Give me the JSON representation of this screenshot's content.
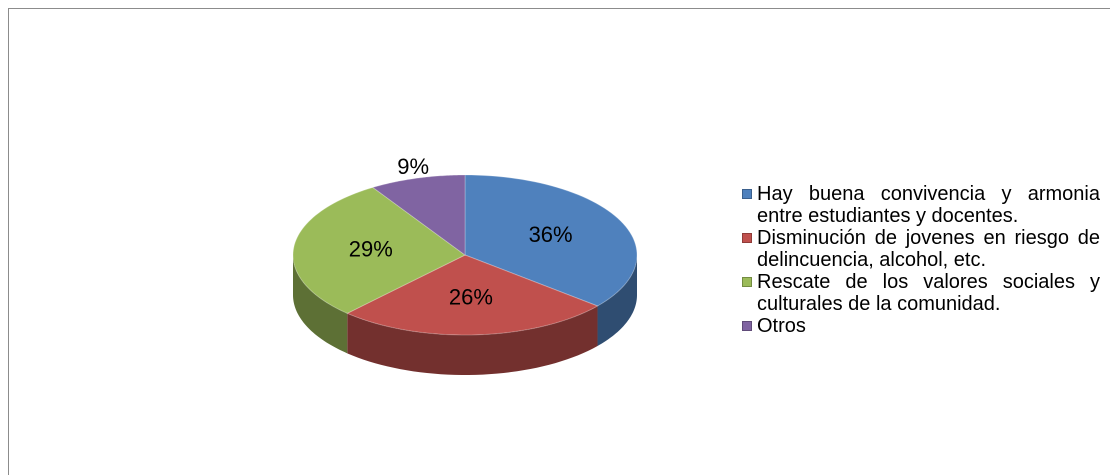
{
  "chart_data": {
    "type": "pie",
    "categories": [
      "Hay buena convivencia y armonia entre estudiantes y docentes.",
      "Disminución de jovenes en riesgo de delincuencia, alcohol, etc.",
      "Rescate de los valores sociales y culturales de la comunidad.",
      "Otros"
    ],
    "values": [
      36,
      26,
      29,
      9
    ],
    "value_labels": [
      "36%",
      "26%",
      "29%",
      "9%"
    ],
    "colors": [
      "#4f81bd",
      "#c0504d",
      "#9bbb59",
      "#8064a2"
    ],
    "legend": "right"
  }
}
